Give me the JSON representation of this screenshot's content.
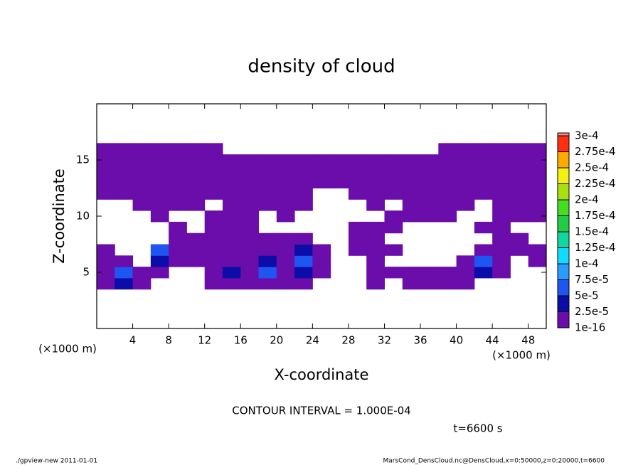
{
  "chart_data": {
    "type": "contour",
    "title": "density of cloud",
    "xlabel": "X-coordinate",
    "ylabel": "Z-coordinate",
    "xunit": "(×1000 m)",
    "yunit": "(×1000 m)",
    "xlim": [
      0,
      50
    ],
    "ylim": [
      0,
      20
    ],
    "xticks": [
      4,
      8,
      12,
      16,
      20,
      24,
      28,
      32,
      36,
      40,
      44,
      48
    ],
    "yticks": [
      5,
      10,
      15
    ],
    "x": [
      1,
      3,
      5,
      7,
      9,
      11,
      13,
      15,
      17,
      19,
      21,
      23,
      25,
      27,
      29,
      31,
      33,
      35,
      37,
      39,
      41,
      43,
      45,
      47,
      49
    ],
    "z": [
      4,
      5,
      6,
      7,
      8,
      9,
      10,
      11,
      12,
      13,
      14,
      15,
      16
    ],
    "values": [
      [
        1e-05,
        3e-05,
        1e-05,
        0,
        0,
        0,
        1e-05,
        1e-05,
        1e-05,
        1e-05,
        1e-05,
        1e-05,
        0,
        0,
        0,
        1e-05,
        0,
        1e-05,
        1e-05,
        1e-05,
        1e-05,
        0,
        0,
        0,
        0
      ],
      [
        1e-05,
        6e-05,
        1e-05,
        1e-05,
        0,
        0,
        1e-05,
        3e-05,
        1e-05,
        6e-05,
        1e-05,
        3e-05,
        1e-05,
        0,
        0,
        1e-05,
        1e-05,
        1e-05,
        1e-05,
        1e-05,
        1e-05,
        3e-05,
        1e-05,
        0,
        0
      ],
      [
        1e-05,
        1e-05,
        0,
        3e-05,
        1e-05,
        1e-05,
        1e-05,
        1e-05,
        1e-05,
        3e-05,
        1e-05,
        6e-05,
        1e-05,
        0,
        0,
        1e-05,
        0,
        0,
        0,
        0,
        1e-05,
        6e-05,
        1e-05,
        0,
        1e-05
      ],
      [
        1e-05,
        0,
        0,
        6e-05,
        1e-05,
        1e-05,
        1e-05,
        1e-05,
        1e-05,
        1e-05,
        1e-05,
        3e-05,
        1e-05,
        0,
        1e-05,
        1e-05,
        1e-05,
        0,
        0,
        0,
        0,
        1e-05,
        1e-05,
        1e-05,
        1e-05
      ],
      [
        0,
        0,
        0,
        0,
        1e-05,
        1e-05,
        1e-05,
        1e-05,
        1e-05,
        1e-05,
        1e-05,
        1e-05,
        0,
        0,
        1e-05,
        1e-05,
        0,
        0,
        0,
        0,
        0,
        0,
        1e-05,
        1e-05,
        0
      ],
      [
        0,
        0,
        0,
        0,
        1e-05,
        0,
        1e-05,
        1e-05,
        1e-05,
        0,
        0,
        0,
        0,
        0,
        1e-05,
        1e-05,
        1e-05,
        0,
        0,
        0,
        0,
        1e-05,
        1e-05,
        0,
        0
      ],
      [
        0,
        0,
        0,
        1e-05,
        0,
        0,
        1e-05,
        1e-05,
        1e-05,
        0,
        1e-05,
        0,
        0,
        0,
        0,
        0,
        1e-05,
        1e-05,
        1e-05,
        1e-05,
        0,
        0,
        1e-05,
        1e-05,
        1e-05
      ],
      [
        0,
        0,
        1e-05,
        1e-05,
        1e-05,
        1e-05,
        0,
        1e-05,
        1e-05,
        1e-05,
        1e-05,
        1e-05,
        0,
        0,
        0,
        1e-05,
        0,
        1e-05,
        1e-05,
        1e-05,
        1e-05,
        0,
        1e-05,
        1e-05,
        1e-05
      ],
      [
        1e-05,
        1e-05,
        1e-05,
        1e-05,
        1e-05,
        1e-05,
        1e-05,
        1e-05,
        1e-05,
        1e-05,
        1e-05,
        1e-05,
        0,
        0,
        1e-05,
        1e-05,
        1e-05,
        1e-05,
        1e-05,
        1e-05,
        1e-05,
        1e-05,
        1e-05,
        1e-05,
        1e-05
      ],
      [
        1e-05,
        1e-05,
        1e-05,
        1e-05,
        1e-05,
        1e-05,
        1e-05,
        1e-05,
        1e-05,
        1e-05,
        1e-05,
        1e-05,
        1e-05,
        1e-05,
        1e-05,
        1e-05,
        1e-05,
        1e-05,
        1e-05,
        1e-05,
        1e-05,
        1e-05,
        1e-05,
        1e-05,
        1e-05
      ],
      [
        1e-05,
        1e-05,
        1e-05,
        1e-05,
        1e-05,
        1e-05,
        1e-05,
        1e-05,
        1e-05,
        1e-05,
        1e-05,
        1e-05,
        1e-05,
        1e-05,
        1e-05,
        1e-05,
        1e-05,
        1e-05,
        1e-05,
        1e-05,
        1e-05,
        1e-05,
        1e-05,
        1e-05,
        1e-05
      ],
      [
        1e-05,
        1e-05,
        1e-05,
        1e-05,
        1e-05,
        1e-05,
        1e-05,
        1e-05,
        1e-05,
        1e-05,
        1e-05,
        1e-05,
        1e-05,
        1e-05,
        1e-05,
        1e-05,
        1e-05,
        1e-05,
        1e-05,
        1e-05,
        1e-05,
        1e-05,
        1e-05,
        1e-05,
        1e-05
      ],
      [
        1e-05,
        1e-05,
        1e-05,
        1e-05,
        1e-05,
        1e-05,
        1e-05,
        0,
        0,
        0,
        0,
        0,
        0,
        0,
        0,
        0,
        0,
        0,
        0,
        1e-05,
        1e-05,
        1e-05,
        1e-05,
        1e-05,
        1e-05
      ]
    ],
    "levels": [
      {
        "value": 1e-16,
        "label": "1e-16"
      },
      {
        "value": 2.5e-05,
        "label": "2.5e-5"
      },
      {
        "value": 5e-05,
        "label": "5e-5"
      },
      {
        "value": 7.5e-05,
        "label": "7.5e-5"
      },
      {
        "value": 0.0001,
        "label": "1e-4"
      },
      {
        "value": 0.000125,
        "label": "1.25e-4"
      },
      {
        "value": 0.00015,
        "label": "1.5e-4"
      },
      {
        "value": 0.000175,
        "label": "1.75e-4"
      },
      {
        "value": 0.0002,
        "label": "2e-4"
      },
      {
        "value": 0.000225,
        "label": "2.25e-4"
      },
      {
        "value": 0.00025,
        "label": "2.5e-4"
      },
      {
        "value": 0.000275,
        "label": "2.75e-4"
      },
      {
        "value": 0.0003,
        "label": "3e-4"
      }
    ],
    "colors": [
      "#6a0dab",
      "#0c0ca8",
      "#1f55f0",
      "#2a9cff",
      "#10dcff",
      "#10d8a0",
      "#22cc44",
      "#44dd22",
      "#a8e010",
      "#f5f010",
      "#ffaa00",
      "#ff3010",
      "#ff8a8a"
    ],
    "contour_interval_label": "CONTOUR INTERVAL = 1.000E-04",
    "time_label": "t=6600 s",
    "footer_left": "./gpview-new   2011-01-01",
    "footer_right": "MarsCond_DensCloud.nc@DensCloud,x=0:50000,z=0:20000,t=6600"
  }
}
